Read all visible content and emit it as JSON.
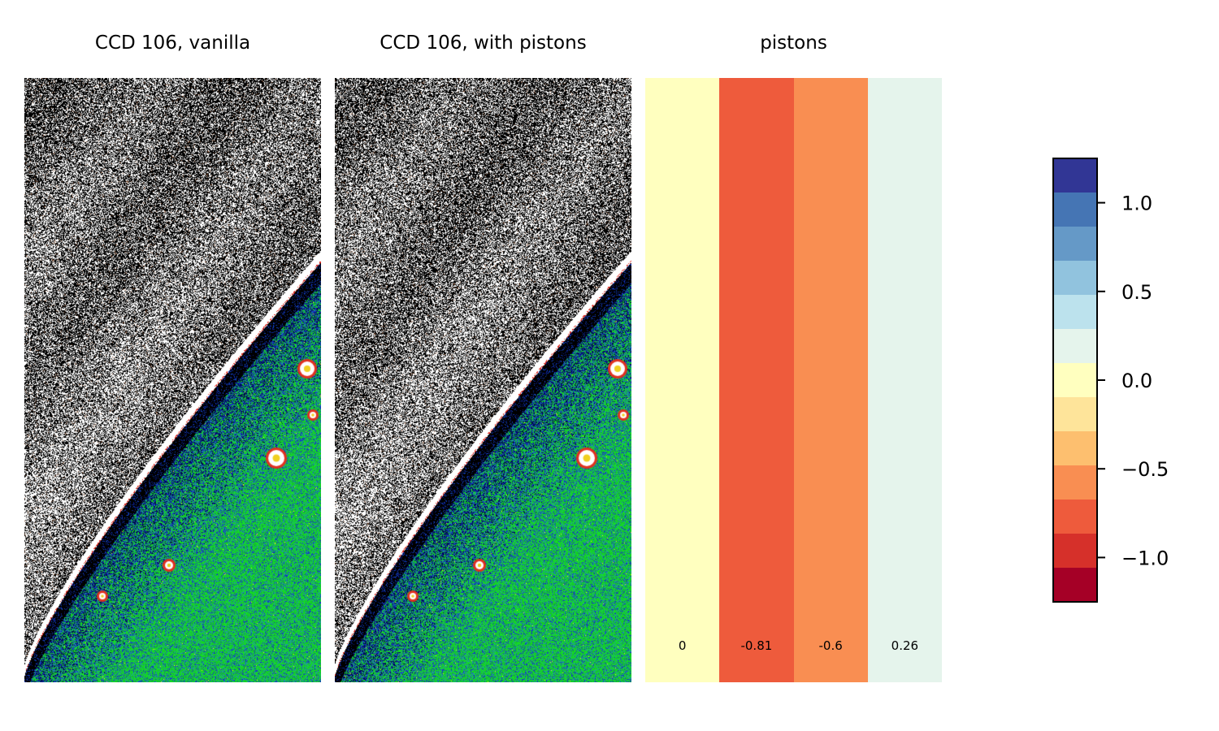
{
  "chart_data": [
    {
      "type": "heatmap",
      "title": "CCD 106, vanilla",
      "description_free": true
    },
    {
      "type": "heatmap",
      "title": "CCD 106, with pistons"
    },
    {
      "type": "bar",
      "title": "pistons",
      "categories": [
        "",
        "",
        "",
        ""
      ],
      "values": [
        0,
        -0.81,
        -0.6,
        0.26
      ],
      "value_labels": [
        "0",
        "-0.81",
        "-0.6",
        "0.26"
      ]
    },
    {
      "type": "colorbar",
      "vmin": -1.25,
      "vmax": 1.25,
      "ticks": [
        1.0,
        0.5,
        0.0,
        -0.5,
        -1.0
      ],
      "tick_labels": [
        "1.0",
        "0.5",
        "0.0",
        "−0.5",
        "−1.0"
      ],
      "colors_top_to_bottom": [
        "#313695",
        "#4575b4",
        "#6599c7",
        "#91c3de",
        "#bce2ed",
        "#e5f4ec",
        "#ffffbf",
        "#fee49a",
        "#fdbf6f",
        "#f98e52",
        "#ee5b3c",
        "#d6302a",
        "#a50026"
      ]
    }
  ]
}
